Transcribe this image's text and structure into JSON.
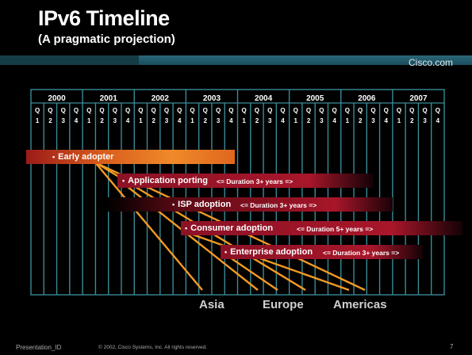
{
  "slide": {
    "title": "IPv6 Timeline",
    "subtitle": "(A pragmatic projection)",
    "brand": "Cisco.com",
    "years": [
      "2000",
      "2001",
      "2002",
      "2003",
      "2004",
      "2005",
      "2006",
      "2007"
    ],
    "quarter_letter": "Q",
    "quarters": [
      "1",
      "2",
      "3",
      "4"
    ],
    "bars": [
      {
        "label": "Early adopter",
        "duration": ""
      },
      {
        "label": "Application porting",
        "duration": "<=  Duration 3+ years  =>"
      },
      {
        "label": "ISP  adoption",
        "duration": "<= Duration 3+ years  =>"
      },
      {
        "label": "Consumer adoption",
        "duration": "<=       Duration 5+ years      =>"
      },
      {
        "label": "Enterprise adoption",
        "duration": "<= Duration 3+ years =>"
      }
    ],
    "regions": [
      "Asia",
      "Europe",
      "Americas"
    ],
    "footer": {
      "left": "Presentation_ID",
      "copyright": "© 2002, Cisco Systems, Inc. All rights reserved.",
      "page": "7"
    },
    "colors": {
      "grid": "#3a8a98",
      "orange": "#e89020",
      "red": "#a8162a",
      "band": "#2a6878"
    }
  }
}
